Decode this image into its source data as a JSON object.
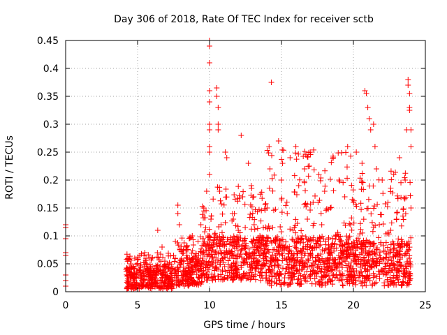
{
  "chart_data": {
    "type": "scatter",
    "title": "Day 306 of 2018, Rate Of TEC Index for receiver sctb",
    "xlabel": "GPS time / hours",
    "ylabel": "ROTI / TECUs",
    "xlim": [
      0,
      25
    ],
    "ylim": [
      0,
      0.45
    ],
    "xticks": [
      0,
      5,
      10,
      15,
      20,
      25
    ],
    "xtick_labels": [
      "0",
      "5",
      "10",
      "15",
      "20",
      "25"
    ],
    "yticks": [
      0,
      0.05,
      0.1,
      0.15,
      0.2,
      0.25,
      0.3,
      0.35,
      0.4,
      0.45
    ],
    "ytick_labels": [
      "0",
      "0.05",
      "0.1",
      "0.15",
      "0.2",
      "0.25",
      "0.3",
      "0.35",
      "0.4",
      "0.45"
    ],
    "grid": true,
    "marker": "+",
    "color": "#ff0000",
    "series": [
      {
        "name": "ROTI",
        "points": [
          [
            0.0,
            0.12
          ],
          [
            0.0,
            0.115
          ],
          [
            0.0,
            0.095
          ],
          [
            0.0,
            0.07
          ],
          [
            0.0,
            0.065
          ],
          [
            0.0,
            0.03
          ],
          [
            0.0,
            0.02
          ],
          [
            0.0,
            0.01
          ],
          [
            4.2,
            0.04
          ],
          [
            4.3,
            0.02
          ],
          [
            4.5,
            0.05
          ],
          [
            4.6,
            0.03
          ],
          [
            4.8,
            0.06
          ],
          [
            4.9,
            0.015
          ],
          [
            5.1,
            0.04
          ],
          [
            5.3,
            0.025
          ],
          [
            5.5,
            0.07
          ],
          [
            5.6,
            0.05
          ],
          [
            5.8,
            0.03
          ],
          [
            6.0,
            0.06
          ],
          [
            6.2,
            0.02
          ],
          [
            6.4,
            0.11
          ],
          [
            6.5,
            0.045
          ],
          [
            6.7,
            0.08
          ],
          [
            6.9,
            0.03
          ],
          [
            7.1,
            0.05
          ],
          [
            7.3,
            0.02
          ],
          [
            7.5,
            0.065
          ],
          [
            7.8,
            0.155
          ],
          [
            7.8,
            0.14
          ],
          [
            7.9,
            0.12
          ],
          [
            8.0,
            0.05
          ],
          [
            8.2,
            0.035
          ],
          [
            8.4,
            0.08
          ],
          [
            8.6,
            0.06
          ],
          [
            8.8,
            0.1
          ],
          [
            9.0,
            0.045
          ],
          [
            9.2,
            0.09
          ],
          [
            9.4,
            0.12
          ],
          [
            9.5,
            0.07
          ],
          [
            9.6,
            0.15
          ],
          [
            9.8,
            0.18
          ],
          [
            9.9,
            0.1
          ],
          [
            10.0,
            0.45
          ],
          [
            10.0,
            0.44
          ],
          [
            10.0,
            0.41
          ],
          [
            10.0,
            0.36
          ],
          [
            10.0,
            0.34
          ],
          [
            10.0,
            0.3
          ],
          [
            10.0,
            0.29
          ],
          [
            10.0,
            0.26
          ],
          [
            10.0,
            0.25
          ],
          [
            10.0,
            0.21
          ],
          [
            10.1,
            0.13
          ],
          [
            10.2,
            0.08
          ],
          [
            10.5,
            0.365
          ],
          [
            10.5,
            0.35
          ],
          [
            10.6,
            0.33
          ],
          [
            10.6,
            0.3
          ],
          [
            10.6,
            0.29
          ],
          [
            10.7,
            0.18
          ],
          [
            10.8,
            0.12
          ],
          [
            11.0,
            0.09
          ],
          [
            11.1,
            0.25
          ],
          [
            11.2,
            0.24
          ],
          [
            11.4,
            0.06
          ],
          [
            11.6,
            0.14
          ],
          [
            11.8,
            0.04
          ],
          [
            12.0,
            0.11
          ],
          [
            12.2,
            0.28
          ],
          [
            12.3,
            0.17
          ],
          [
            12.5,
            0.08
          ],
          [
            12.7,
            0.23
          ],
          [
            12.9,
            0.19
          ],
          [
            13.1,
            0.12
          ],
          [
            13.3,
            0.05
          ],
          [
            13.5,
            0.1
          ],
          [
            13.8,
            0.07
          ],
          [
            14.0,
            0.15
          ],
          [
            14.2,
            0.22
          ],
          [
            14.3,
            0.375
          ],
          [
            14.5,
            0.09
          ],
          [
            14.8,
            0.27
          ],
          [
            15.0,
            0.2
          ],
          [
            15.2,
            0.06
          ],
          [
            15.4,
            0.14
          ],
          [
            15.6,
            0.24
          ],
          [
            15.8,
            0.11
          ],
          [
            16.0,
            0.26
          ],
          [
            16.2,
            0.19
          ],
          [
            16.4,
            0.04
          ],
          [
            16.6,
            0.22
          ],
          [
            16.8,
            0.13
          ],
          [
            17.0,
            0.25
          ],
          [
            17.2,
            0.16
          ],
          [
            17.4,
            0.08
          ],
          [
            17.6,
            0.21
          ],
          [
            17.8,
            0.12
          ],
          [
            18.0,
            0.18
          ],
          [
            18.2,
            0.05
          ],
          [
            18.4,
            0.15
          ],
          [
            18.6,
            0.24
          ],
          [
            18.8,
            0.1
          ],
          [
            19.0,
            0.2
          ],
          [
            19.2,
            0.07
          ],
          [
            19.4,
            0.17
          ],
          [
            19.6,
            0.26
          ],
          [
            19.8,
            0.12
          ],
          [
            20.0,
            0.16
          ],
          [
            20.2,
            0.25
          ],
          [
            20.4,
            0.09
          ],
          [
            20.6,
            0.23
          ],
          [
            20.8,
            0.36
          ],
          [
            20.9,
            0.355
          ],
          [
            21.0,
            0.33
          ],
          [
            21.1,
            0.31
          ],
          [
            21.2,
            0.29
          ],
          [
            21.4,
            0.3
          ],
          [
            21.5,
            0.26
          ],
          [
            21.6,
            0.22
          ],
          [
            21.8,
            0.12
          ],
          [
            22.0,
            0.2
          ],
          [
            22.2,
            0.05
          ],
          [
            22.4,
            0.16
          ],
          [
            22.6,
            0.11
          ],
          [
            22.8,
            0.21
          ],
          [
            23.0,
            0.13
          ],
          [
            23.2,
            0.24
          ],
          [
            23.4,
            0.08
          ],
          [
            23.6,
            0.2
          ],
          [
            23.7,
            0.29
          ],
          [
            23.8,
            0.38
          ],
          [
            23.8,
            0.37
          ],
          [
            23.9,
            0.355
          ],
          [
            23.9,
            0.33
          ],
          [
            23.9,
            0.325
          ],
          [
            24.0,
            0.29
          ],
          [
            24.0,
            0.26
          ],
          [
            24.0,
            0.15
          ]
        ],
        "dense_bands": [
          {
            "x_range": [
              4.2,
              7.5
            ],
            "y_floor": 0.005,
            "y_typical": 0.045,
            "y_peak": 0.07
          },
          {
            "x_range": [
              7.5,
              9.5
            ],
            "y_floor": 0.01,
            "y_typical": 0.06,
            "y_peak": 0.1
          },
          {
            "x_range": [
              9.5,
              14.0
            ],
            "y_floor": 0.02,
            "y_typical": 0.1,
            "y_peak": 0.19
          },
          {
            "x_range": [
              14.0,
              20.0
            ],
            "y_floor": 0.01,
            "y_typical": 0.1,
            "y_peak": 0.26
          },
          {
            "x_range": [
              20.0,
              24.0
            ],
            "y_floor": 0.01,
            "y_typical": 0.09,
            "y_peak": 0.22
          }
        ]
      }
    ]
  }
}
